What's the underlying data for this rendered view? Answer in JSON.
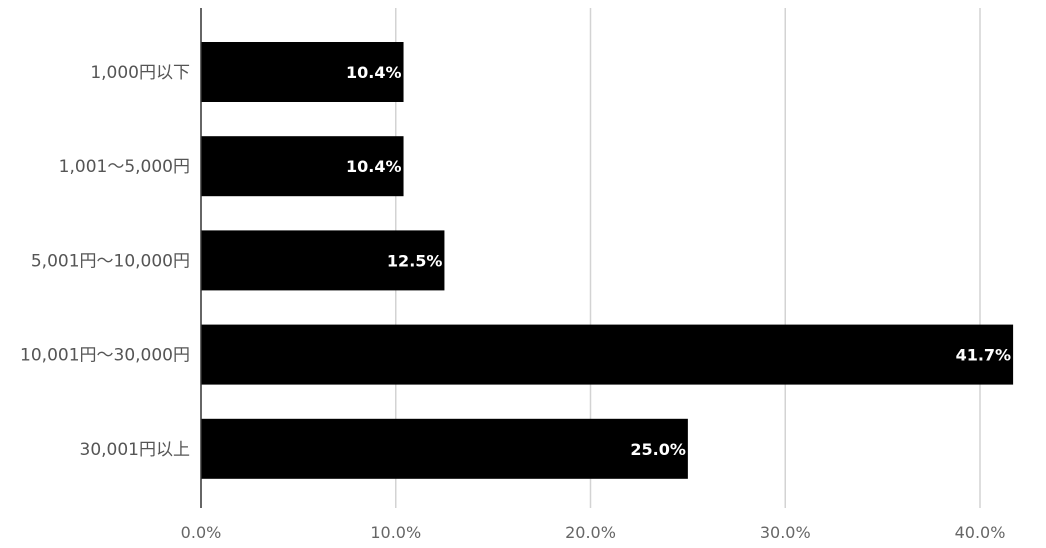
{
  "chart_data": {
    "type": "bar",
    "orientation": "horizontal",
    "title": "",
    "xlabel": "",
    "ylabel": "",
    "categories": [
      "1,000円以下",
      "1,001〜5,000円",
      "5,001円〜10,000円",
      "10,001円〜30,000円",
      "30,001円以上"
    ],
    "values": [
      10.4,
      10.4,
      12.5,
      41.7,
      25.0
    ],
    "data_labels": [
      "10.4%",
      "10.4%",
      "12.5%",
      "41.7%",
      "25.0%"
    ],
    "xlim": [
      0,
      42
    ],
    "x_ticks": [
      0,
      10,
      20,
      30,
      40
    ],
    "x_tick_labels": [
      "0.0%",
      "10.0%",
      "20.0%",
      "30.0%",
      "40.0%"
    ],
    "grid": true,
    "legend": "none",
    "colors": {
      "bar": "#000000",
      "grid": "#d3d3d3",
      "label": "#ffffff"
    }
  }
}
